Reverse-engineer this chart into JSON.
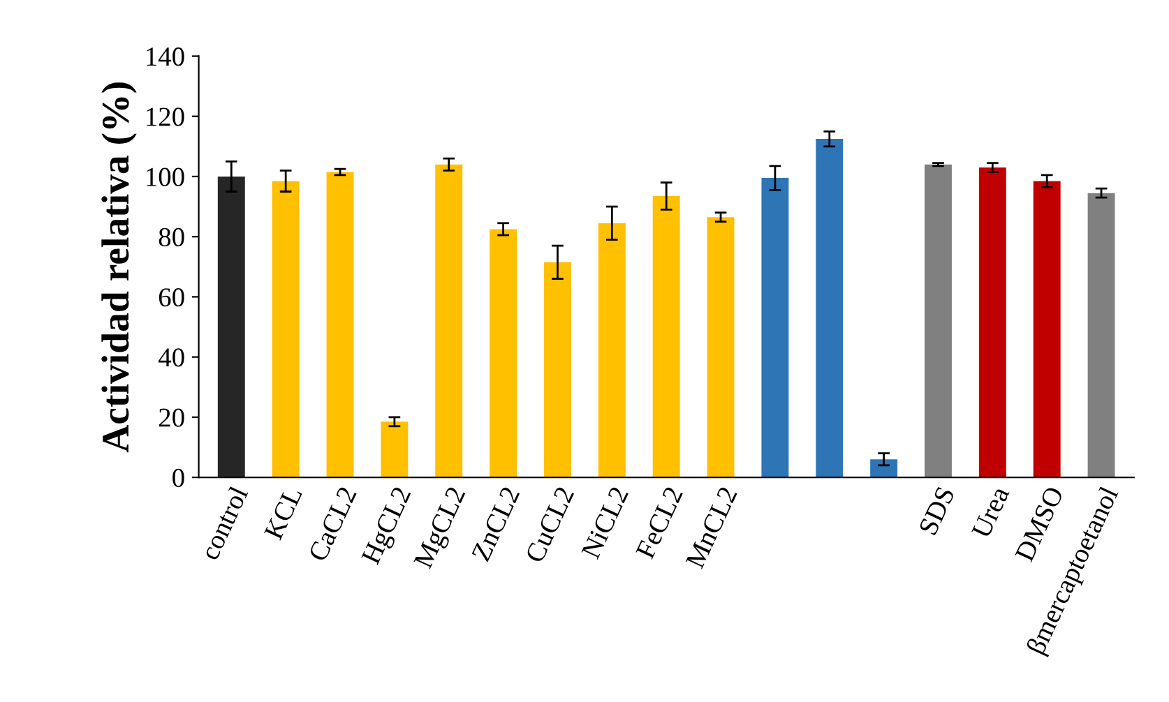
{
  "chart_data": {
    "type": "bar",
    "ylabel": "Actividad relativa (%)",
    "categories": [
      "control",
      "KCL",
      "CaCL2",
      "HgCL2",
      "MgCL2",
      "ZnCL2",
      "CuCL2",
      "NiCL2",
      "FeCL2",
      "MnCL2",
      null,
      null,
      null,
      "SDS",
      "Urea",
      "DMSO",
      "βmercaptoetanol"
    ],
    "values": [
      100,
      98.5,
      101.5,
      18.5,
      104,
      82.5,
      71.5,
      84.5,
      93.5,
      86.5,
      99.5,
      112.5,
      6,
      104,
      103,
      98.5,
      94.5
    ],
    "errors": [
      5,
      3.5,
      1,
      1.5,
      2,
      2,
      5.5,
      5.5,
      4.5,
      1.5,
      4,
      2.5,
      2,
      0.5,
      1.5,
      2,
      1.5
    ],
    "colors": [
      "#262626",
      "#ffc000",
      "#ffc000",
      "#ffc000",
      "#ffc000",
      "#ffc000",
      "#ffc000",
      "#ffc000",
      "#ffc000",
      "#ffc000",
      "#2e75b6",
      "#2e75b6",
      "#2e75b6",
      "#808080",
      "#c00000",
      "#c00000",
      "#808080"
    ],
    "ylim": [
      0,
      140
    ],
    "yticks": [
      0,
      20,
      40,
      60,
      80,
      100,
      120,
      140
    ],
    "grid": false,
    "legend": false
  }
}
